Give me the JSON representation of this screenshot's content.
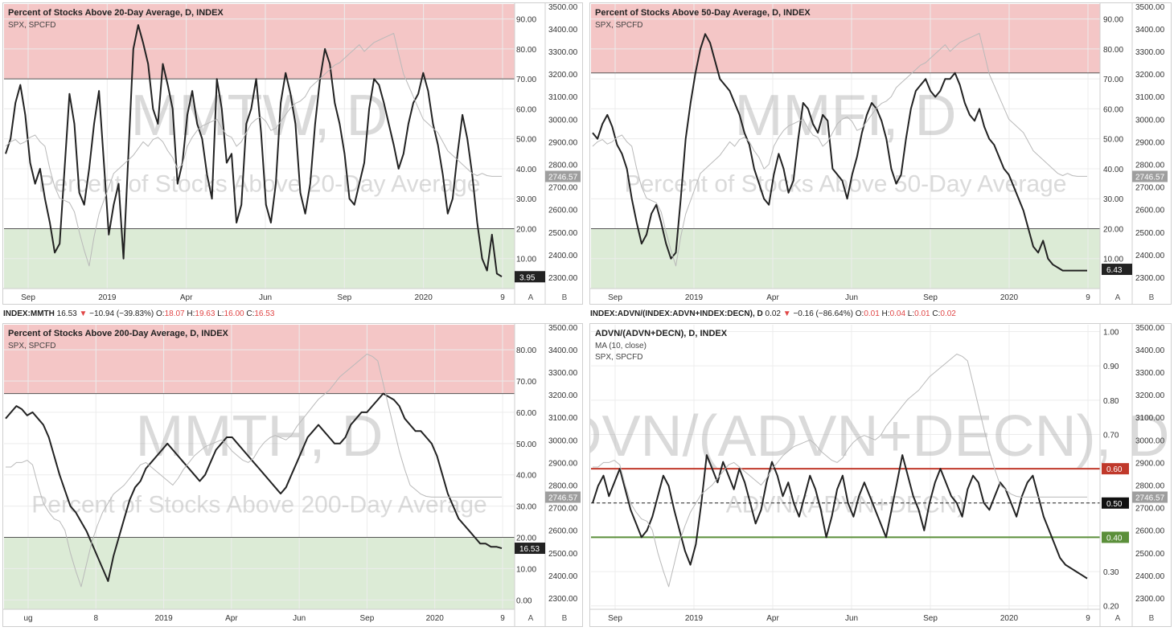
{
  "colors": {
    "overbought": "#f4c6c6",
    "oversold": "#dcebd6",
    "ind": "#222222",
    "spx": "#b9b9b9",
    "redline": "#c0392b",
    "greenline": "#5b8f3a"
  },
  "legend_tl": {
    "sym": "INDEX:MMTH",
    "last": "16.53",
    "chg": "−10.94 (−39.83%)",
    "o": "18.07",
    "h": "19.63",
    "l": "16.00",
    "c": "16.53"
  },
  "legend_br": {
    "sym": "INDEX:ADVN/(INDEX:ADVN+INDEX:DECN), D",
    "last": "0.02",
    "chg": "−0.16 (−86.64%)",
    "o": "0.01",
    "h": "0.04",
    "l": "0.01",
    "c": "0.02"
  },
  "chart_data": [
    {
      "type": "line",
      "title": "Percent of Stocks Above 20-Day Average, D, INDEX",
      "subtitle": "SPX, SPCFD",
      "watermark_big": "MMTW, D",
      "watermark_small": "Percent of Stocks Above 20-Day Average",
      "x_ticks": [
        "Sep",
        "2019",
        "Apr",
        "Jun",
        "Sep",
        "2020",
        "9"
      ],
      "axis_a_ticks": [
        "90.00",
        "80.00",
        "70.00",
        "60.00",
        "50.00",
        "40.00",
        "30.00",
        "20.00",
        "10.00"
      ],
      "axis_a_range": [
        0,
        95
      ],
      "axis_b_ticks": [
        "3500.00",
        "3400.00",
        "3300.00",
        "3200.00",
        "3100.00",
        "3000.00",
        "2900.00",
        "2800.00",
        "2700.00",
        "2600.00",
        "2500.00",
        "2400.00",
        "2300.00"
      ],
      "axis_b_range": [
        2250,
        3510
      ],
      "upper_level": 70,
      "lower_level": 20,
      "last_label": "3.95",
      "spx_label": "2746.57",
      "series": [
        {
          "name": "MMTW",
          "values": [
            45,
            50,
            62,
            68,
            58,
            42,
            35,
            40,
            30,
            22,
            12,
            15,
            40,
            65,
            55,
            32,
            28,
            40,
            55,
            66,
            42,
            18,
            28,
            35,
            10,
            45,
            80,
            88,
            82,
            75,
            60,
            55,
            75,
            68,
            60,
            35,
            42,
            58,
            66,
            55,
            50,
            38,
            30,
            70,
            60,
            42,
            45,
            22,
            28,
            55,
            60,
            70,
            52,
            28,
            22,
            35,
            62,
            72,
            65,
            55,
            32,
            25,
            35,
            55,
            70,
            80,
            75,
            62,
            55,
            45,
            30,
            28,
            35,
            42,
            60,
            70,
            68,
            62,
            55,
            48,
            40,
            45,
            55,
            62,
            65,
            72,
            66,
            55,
            48,
            38,
            25,
            30,
            45,
            58,
            50,
            38,
            22,
            10,
            6,
            18,
            5,
            4
          ],
          "axis": "a"
        },
        {
          "name": "SPX",
          "values": [
            2880,
            2900,
            2910,
            2890,
            2900,
            2920,
            2930,
            2900,
            2880,
            2780,
            2700,
            2650,
            2640,
            2630,
            2590,
            2500,
            2420,
            2350,
            2480,
            2580,
            2640,
            2700,
            2760,
            2780,
            2800,
            2820,
            2840,
            2870,
            2900,
            2880,
            2910,
            2920,
            2900,
            2860,
            2830,
            2780,
            2800,
            2880,
            2920,
            2950,
            2970,
            2980,
            2990,
            3000,
            2960,
            2930,
            2920,
            2880,
            2900,
            2940,
            2980,
            3000,
            3010,
            2990,
            2950,
            2960,
            2990,
            3020,
            3050,
            3070,
            3080,
            3100,
            3140,
            3160,
            3180,
            3200,
            3220,
            3240,
            3250,
            3270,
            3290,
            3310,
            3330,
            3300,
            3320,
            3340,
            3350,
            3360,
            3370,
            3380,
            3290,
            3200,
            3150,
            3100,
            3050,
            3000,
            2980,
            2960,
            2940,
            2900,
            2860,
            2840,
            2820,
            2800,
            2780,
            2760,
            2750,
            2760,
            2750,
            2747,
            2747,
            2747
          ],
          "axis": "b"
        }
      ]
    },
    {
      "type": "line",
      "title": "Percent of Stocks Above 50-Day Average, D, INDEX",
      "subtitle": "SPX, SPCFD",
      "watermark_big": "MMFI, D",
      "watermark_small": "Percent of Stocks Above 50-Day Average",
      "x_ticks": [
        "Sep",
        "2019",
        "Apr",
        "Jun",
        "Sep",
        "2020",
        "9"
      ],
      "axis_a_ticks": [
        "90.00",
        "80.00",
        "70.00",
        "60.00",
        "50.00",
        "40.00",
        "30.00",
        "20.00",
        "10.00"
      ],
      "axis_a_range": [
        0,
        95
      ],
      "axis_b_ticks": [
        "3500.00",
        "3400.00",
        "3300.00",
        "3200.00",
        "3100.00",
        "3000.00",
        "2900.00",
        "2800.00",
        "2700.00",
        "2600.00",
        "2500.00",
        "2400.00",
        "2300.00"
      ],
      "axis_b_range": [
        2250,
        3510
      ],
      "upper_level": 72,
      "lower_level": 20,
      "last_label": "6.43",
      "spx_label": "2746.57",
      "series": [
        {
          "name": "MMFI",
          "values": [
            52,
            50,
            55,
            58,
            54,
            48,
            45,
            40,
            30,
            22,
            15,
            18,
            25,
            28,
            22,
            15,
            10,
            12,
            30,
            50,
            62,
            72,
            80,
            85,
            82,
            76,
            70,
            68,
            66,
            62,
            58,
            52,
            48,
            40,
            35,
            30,
            28,
            38,
            45,
            40,
            32,
            36,
            50,
            62,
            60,
            55,
            52,
            58,
            56,
            40,
            38,
            36,
            30,
            38,
            44,
            52,
            58,
            62,
            60,
            56,
            50,
            40,
            35,
            38,
            50,
            60,
            66,
            68,
            70,
            66,
            64,
            66,
            70,
            70,
            72,
            68,
            62,
            58,
            56,
            60,
            54,
            50,
            48,
            44,
            40,
            38,
            34,
            30,
            26,
            20,
            14,
            12,
            16,
            10,
            8,
            7,
            6,
            6,
            6,
            6,
            6,
            6
          ],
          "axis": "a"
        },
        {
          "name": "SPX",
          "values": [
            2880,
            2900,
            2910,
            2890,
            2900,
            2920,
            2930,
            2900,
            2880,
            2780,
            2700,
            2650,
            2640,
            2630,
            2590,
            2500,
            2420,
            2350,
            2480,
            2580,
            2640,
            2700,
            2760,
            2780,
            2800,
            2820,
            2840,
            2870,
            2900,
            2880,
            2910,
            2920,
            2900,
            2860,
            2830,
            2780,
            2800,
            2880,
            2920,
            2950,
            2970,
            2980,
            2990,
            3000,
            2960,
            2930,
            2920,
            2880,
            2900,
            2940,
            2980,
            3000,
            3010,
            2990,
            2950,
            2960,
            2990,
            3020,
            3050,
            3070,
            3080,
            3100,
            3140,
            3160,
            3180,
            3200,
            3220,
            3240,
            3250,
            3270,
            3290,
            3310,
            3330,
            3300,
            3320,
            3340,
            3350,
            3360,
            3370,
            3380,
            3290,
            3200,
            3150,
            3100,
            3050,
            3000,
            2980,
            2960,
            2940,
            2900,
            2860,
            2840,
            2820,
            2800,
            2780,
            2760,
            2750,
            2760,
            2750,
            2747,
            2747,
            2747
          ],
          "axis": "b"
        }
      ]
    },
    {
      "type": "line",
      "title": "Percent of Stocks Above 200-Day Average, D, INDEX",
      "subtitle": "SPX, SPCFD",
      "watermark_big": "MMTH, D",
      "watermark_small": "Percent of Stocks Above 200-Day Average",
      "x_ticks": [
        "ug",
        "8",
        "2019",
        "Apr",
        "Jun",
        "Sep",
        "2020",
        "9"
      ],
      "axis_a_ticks": [
        "80.00",
        "70.00",
        "60.00",
        "50.00",
        "40.00",
        "30.00",
        "20.00",
        "10.00",
        "0.00"
      ],
      "axis_a_range": [
        -3,
        88
      ],
      "axis_b_ticks": [
        "3500.00",
        "3400.00",
        "3300.00",
        "3200.00",
        "3100.00",
        "3000.00",
        "2900.00",
        "2800.00",
        "2700.00",
        "2600.00",
        "2500.00",
        "2400.00",
        "2300.00"
      ],
      "axis_b_range": [
        2250,
        3510
      ],
      "upper_level": 66,
      "lower_level": 20,
      "last_label": "16.53",
      "spx_label": "2746.57",
      "series": [
        {
          "name": "MMTH",
          "values": [
            58,
            60,
            62,
            61,
            59,
            60,
            58,
            56,
            52,
            46,
            40,
            35,
            30,
            28,
            25,
            22,
            18,
            14,
            10,
            6,
            14,
            20,
            26,
            32,
            36,
            38,
            42,
            44,
            46,
            48,
            50,
            48,
            46,
            44,
            42,
            40,
            38,
            40,
            44,
            48,
            50,
            52,
            52,
            50,
            48,
            46,
            44,
            42,
            40,
            38,
            36,
            34,
            36,
            40,
            44,
            48,
            52,
            54,
            56,
            54,
            52,
            50,
            50,
            52,
            56,
            58,
            60,
            60,
            62,
            64,
            66,
            65,
            64,
            62,
            58,
            56,
            54,
            54,
            52,
            50,
            46,
            40,
            34,
            30,
            26,
            24,
            22,
            20,
            18,
            18,
            17,
            17,
            16.5
          ],
          "axis": "a"
        },
        {
          "name": "SPX",
          "values": [
            2880,
            2880,
            2900,
            2900,
            2910,
            2890,
            2800,
            2720,
            2680,
            2650,
            2640,
            2600,
            2500,
            2420,
            2350,
            2450,
            2550,
            2620,
            2680,
            2720,
            2760,
            2780,
            2800,
            2830,
            2860,
            2890,
            2900,
            2880,
            2860,
            2840,
            2820,
            2800,
            2830,
            2870,
            2900,
            2930,
            2950,
            2970,
            2980,
            2990,
            3000,
            2980,
            2950,
            2930,
            2910,
            2900,
            2920,
            2960,
            2990,
            3010,
            3020,
            3010,
            3000,
            3020,
            3060,
            3090,
            3120,
            3150,
            3180,
            3200,
            3220,
            3250,
            3280,
            3300,
            3320,
            3340,
            3360,
            3380,
            3370,
            3350,
            3250,
            3150,
            3050,
            2950,
            2870,
            2800,
            2780,
            2760,
            2750,
            2747,
            2747,
            2747,
            2747,
            2747,
            2747,
            2747,
            2747,
            2747,
            2747,
            2747,
            2747,
            2747,
            2747
          ],
          "axis": "b"
        }
      ]
    },
    {
      "type": "line",
      "title": "ADVN/(ADVN+DECN), D, INDEX",
      "subtitle": "MA (10, close)",
      "subtitle2": "SPX, SPCFD",
      "watermark_big": "ADVN/(ADVN+DECN), D",
      "watermark_small": "ADVN/(ADVN+DECN)",
      "x_ticks": [
        "Sep",
        "2019",
        "Apr",
        "Jun",
        "Sep",
        "2020",
        "9"
      ],
      "axis_a_ticks": [
        "1.00",
        "0.90",
        "0.80",
        "0.70",
        "0.60",
        "0.50",
        "0.40",
        "0.30",
        "0.20"
      ],
      "axis_a_range": [
        0.19,
        1.02
      ],
      "axis_b_ticks": [
        "3500.00",
        "3400.00",
        "3300.00",
        "3200.00",
        "3100.00",
        "3000.00",
        "2900.00",
        "2800.00",
        "2700.00",
        "2600.00",
        "2500.00",
        "2400.00",
        "2300.00"
      ],
      "axis_b_range": [
        2250,
        3510
      ],
      "upper_level": 0.6,
      "mid_level": 0.5,
      "lower_level": 0.4,
      "level_labels": [
        "0.60",
        "0.50",
        "0.40"
      ],
      "spx_label": "2746.57",
      "series": [
        {
          "name": "MA (10, close)",
          "values": [
            0.5,
            0.55,
            0.58,
            0.52,
            0.56,
            0.6,
            0.54,
            0.48,
            0.44,
            0.4,
            0.42,
            0.46,
            0.52,
            0.58,
            0.55,
            0.48,
            0.42,
            0.36,
            0.32,
            0.38,
            0.5,
            0.64,
            0.6,
            0.56,
            0.62,
            0.58,
            0.54,
            0.6,
            0.56,
            0.5,
            0.44,
            0.48,
            0.56,
            0.62,
            0.58,
            0.52,
            0.56,
            0.5,
            0.46,
            0.52,
            0.58,
            0.54,
            0.48,
            0.4,
            0.46,
            0.54,
            0.58,
            0.5,
            0.46,
            0.52,
            0.56,
            0.52,
            0.48,
            0.44,
            0.4,
            0.48,
            0.56,
            0.64,
            0.58,
            0.52,
            0.48,
            0.42,
            0.5,
            0.56,
            0.6,
            0.56,
            0.52,
            0.5,
            0.46,
            0.54,
            0.58,
            0.56,
            0.5,
            0.48,
            0.52,
            0.56,
            0.54,
            0.5,
            0.46,
            0.52,
            0.56,
            0.58,
            0.52,
            0.46,
            0.42,
            0.38,
            0.34,
            0.32,
            0.31,
            0.3,
            0.29,
            0.28
          ],
          "axis": "a"
        },
        {
          "name": "SPX",
          "values": [
            2880,
            2880,
            2900,
            2900,
            2910,
            2890,
            2800,
            2720,
            2680,
            2650,
            2640,
            2600,
            2500,
            2420,
            2350,
            2450,
            2550,
            2620,
            2680,
            2720,
            2760,
            2780,
            2800,
            2830,
            2860,
            2890,
            2900,
            2880,
            2860,
            2840,
            2820,
            2800,
            2830,
            2870,
            2900,
            2930,
            2950,
            2970,
            2980,
            2990,
            3000,
            2980,
            2950,
            2930,
            2910,
            2900,
            2920,
            2960,
            2990,
            3010,
            3020,
            3010,
            3000,
            3020,
            3060,
            3090,
            3120,
            3150,
            3180,
            3200,
            3220,
            3250,
            3280,
            3300,
            3320,
            3340,
            3360,
            3380,
            3370,
            3350,
            3250,
            3150,
            3050,
            2950,
            2870,
            2800,
            2780,
            2760,
            2750,
            2747,
            2747,
            2747,
            2747,
            2747,
            2747,
            2747,
            2747,
            2747,
            2747,
            2747,
            2747,
            2747
          ],
          "axis": "b"
        }
      ]
    }
  ]
}
